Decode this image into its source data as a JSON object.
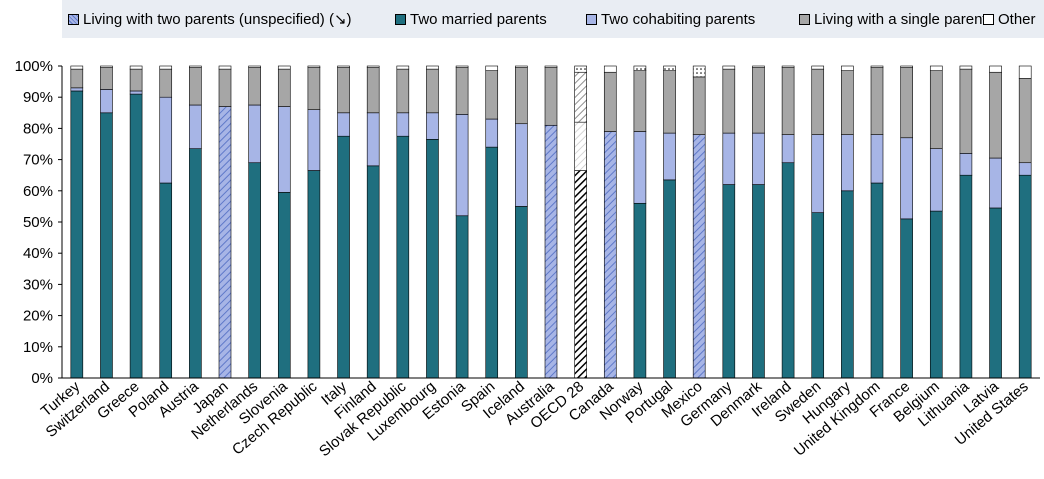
{
  "legend": [
    {
      "key": "unspecified",
      "label": "Living with two parents (unspecified) (↘)"
    },
    {
      "key": "married",
      "label": "Two married parents"
    },
    {
      "key": "cohabiting",
      "label": "Two cohabiting parents"
    },
    {
      "key": "single",
      "label": "Living with a single parent"
    },
    {
      "key": "other",
      "label": "Other"
    }
  ],
  "colors": {
    "married": "#1f6f7f",
    "cohabiting": "#a7b5e6",
    "single": "#a6a6a6",
    "other": "#ffffff",
    "unspecified": "#a7b5e6",
    "oecd": "#1a1a1a"
  },
  "chart_data": {
    "type": "bar",
    "stacked": true,
    "ylim": [
      0,
      100
    ],
    "yticks": [
      "0%",
      "10%",
      "20%",
      "30%",
      "40%",
      "50%",
      "60%",
      "70%",
      "80%",
      "90%",
      "100%"
    ],
    "grid": false,
    "legend_position": "top",
    "categories": [
      "Turkey",
      "Switzerland",
      "Greece",
      "Poland",
      "Austria",
      "Japan",
      "Netherlands",
      "Slovenia",
      "Czech Republic",
      "Italy",
      "Finland",
      "Slovak Republic",
      "Luxembourg",
      "Estonia",
      "Spain",
      "Iceland",
      "Australia",
      "OECD 28",
      "Canada",
      "Norway",
      "Portugal",
      "Mexico",
      "Germany",
      "Denmark",
      "Ireland",
      "Sweden",
      "Hungary",
      "United Kingdom",
      "France",
      "Belgium",
      "Lithuania",
      "Latvia",
      "United States"
    ],
    "series": [
      {
        "name": "Living with two parents (unspecified) (↘)",
        "key": "unspecified",
        "values": [
          0,
          0,
          0,
          0,
          0,
          87,
          0,
          0,
          0,
          0,
          0,
          0,
          0,
          0,
          0,
          0,
          81,
          0,
          79,
          0,
          0,
          78,
          0,
          0,
          0,
          0,
          0,
          0,
          0,
          0,
          0,
          0,
          0
        ]
      },
      {
        "name": "Two married parents",
        "key": "married",
        "values": [
          92,
          85,
          91,
          62.5,
          73.5,
          0,
          69,
          59.5,
          66.5,
          77.5,
          68,
          77.5,
          76.5,
          52,
          74,
          55,
          0,
          66.5,
          0,
          56,
          63.5,
          0,
          62,
          62,
          69,
          53,
          60,
          62.5,
          51,
          53.5,
          65,
          54.5,
          65
        ]
      },
      {
        "name": "Two cohabiting parents",
        "key": "cohabiting",
        "values": [
          1,
          7.5,
          1,
          27.5,
          14,
          0,
          18.5,
          27.5,
          19.5,
          7.5,
          17,
          7.5,
          8.5,
          32.5,
          9,
          26.5,
          0,
          15.5,
          0,
          23,
          15,
          0,
          16.5,
          16.5,
          9,
          25,
          18,
          15.5,
          26,
          20,
          7,
          16,
          4
        ]
      },
      {
        "name": "Living with a single parent",
        "key": "single",
        "values": [
          6,
          7,
          7,
          9,
          12,
          12,
          12,
          12,
          13.5,
          14.5,
          14.5,
          14,
          14,
          15,
          15.5,
          18,
          18.5,
          16,
          19,
          19.5,
          20,
          18.5,
          20.5,
          21,
          21.5,
          21,
          20.5,
          21.5,
          22.5,
          25,
          27,
          27.5,
          27
        ]
      },
      {
        "name": "Other",
        "key": "other",
        "values": [
          1,
          0.5,
          1,
          1,
          0.5,
          1,
          0.5,
          1,
          0.5,
          0.5,
          0.5,
          1,
          1,
          0.5,
          1.5,
          0.5,
          0.5,
          2,
          2,
          1.5,
          1.5,
          3.5,
          1,
          0.5,
          0.5,
          1,
          1.5,
          0.5,
          0.5,
          1.5,
          1,
          2,
          4
        ]
      }
    ]
  }
}
